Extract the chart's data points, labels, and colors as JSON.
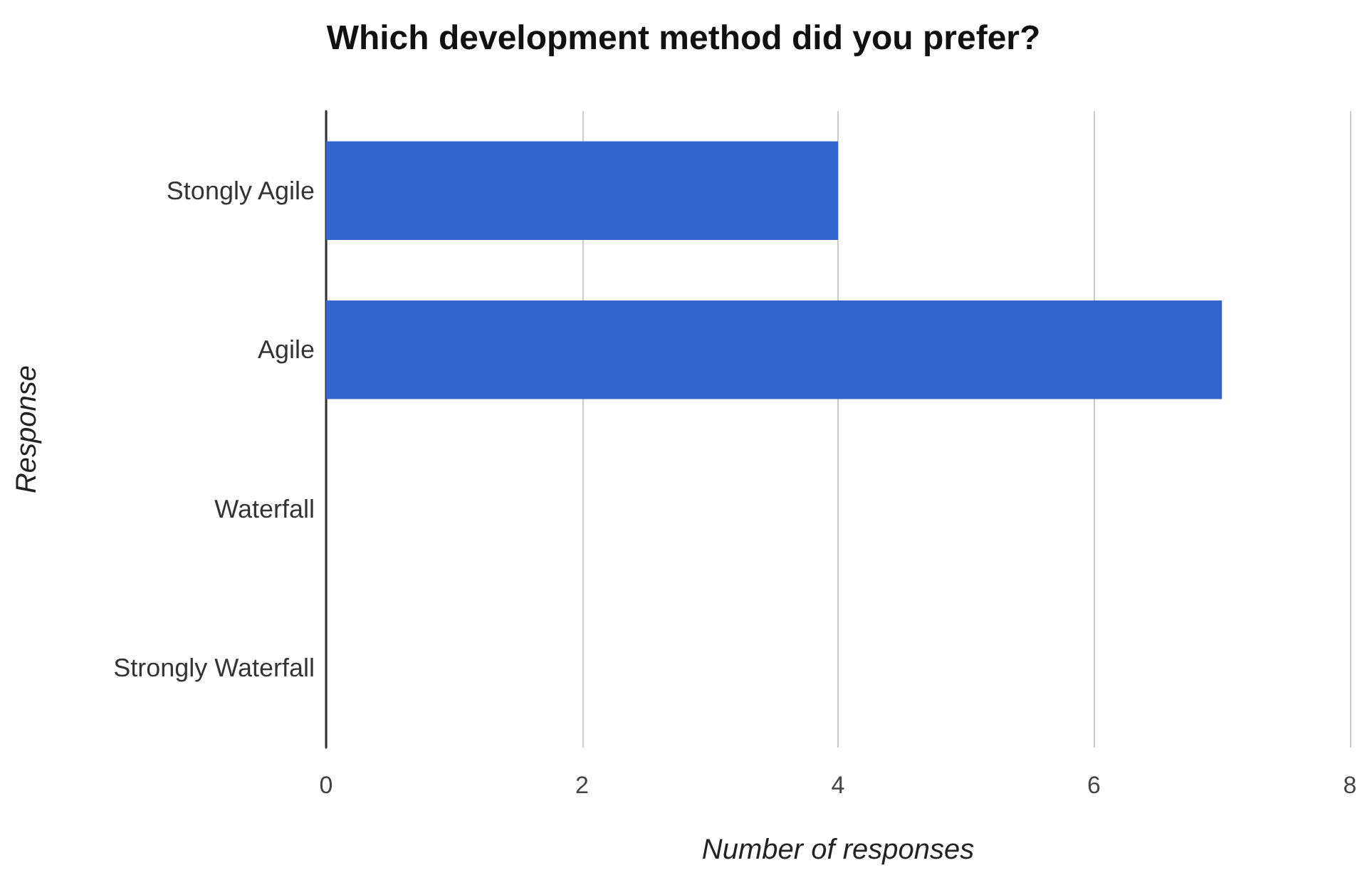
{
  "chart_data": {
    "type": "bar",
    "orientation": "horizontal",
    "title": "Which development method did you prefer?",
    "xlabel": "Number of responses",
    "ylabel": "Response",
    "categories": [
      "Stongly Agile",
      "Agile",
      "Waterfall",
      "Strongly Waterfall"
    ],
    "values": [
      4,
      7,
      0,
      0
    ],
    "color": "#3366cc",
    "xlim": [
      0,
      8
    ],
    "xticks": [
      0,
      2,
      4,
      6,
      8
    ],
    "grid": "x"
  }
}
